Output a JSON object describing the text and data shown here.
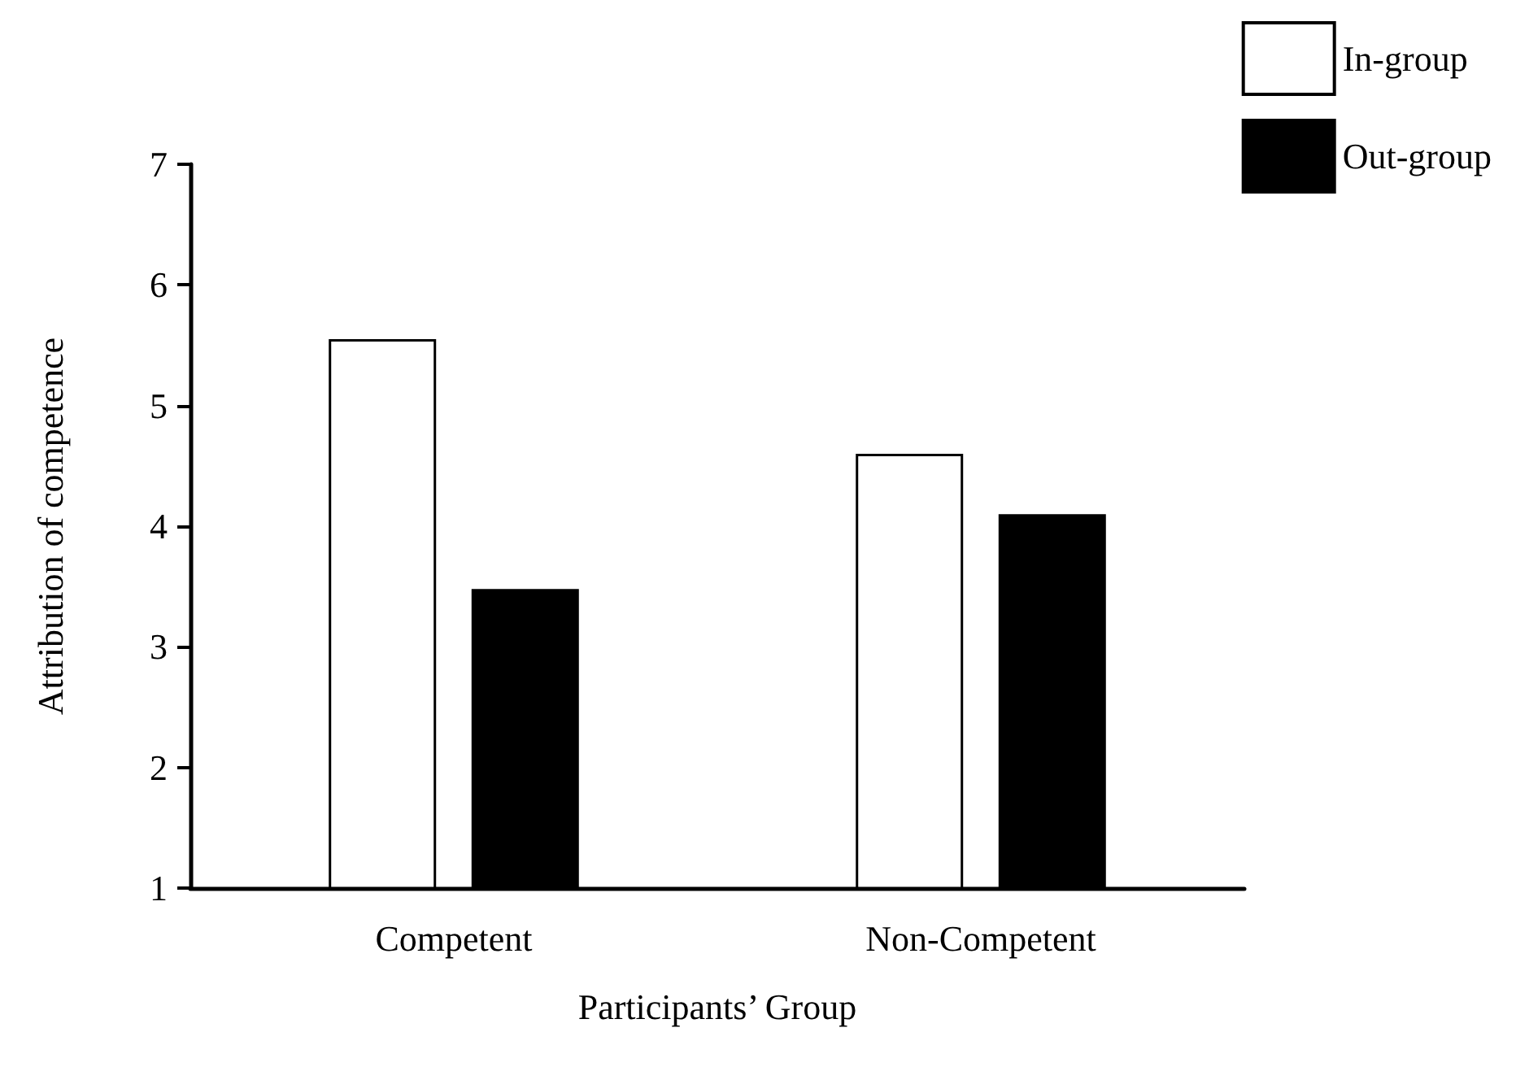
{
  "chart_data": {
    "type": "bar",
    "xlabel": "Participants’ Group",
    "ylabel": "Attribution of competence",
    "categories": [
      "Competent",
      "Non-Competent"
    ],
    "series": [
      {
        "name": "In-group",
        "color": "#ffffff",
        "values": [
          5.55,
          4.6
        ]
      },
      {
        "name": "Out-group",
        "color": "#000000",
        "values": [
          3.48,
          4.1
        ]
      }
    ],
    "ylim": [
      1,
      7
    ],
    "yticks": [
      1,
      2,
      3,
      4,
      5,
      6,
      7
    ],
    "grid": false,
    "legend": "top right"
  }
}
